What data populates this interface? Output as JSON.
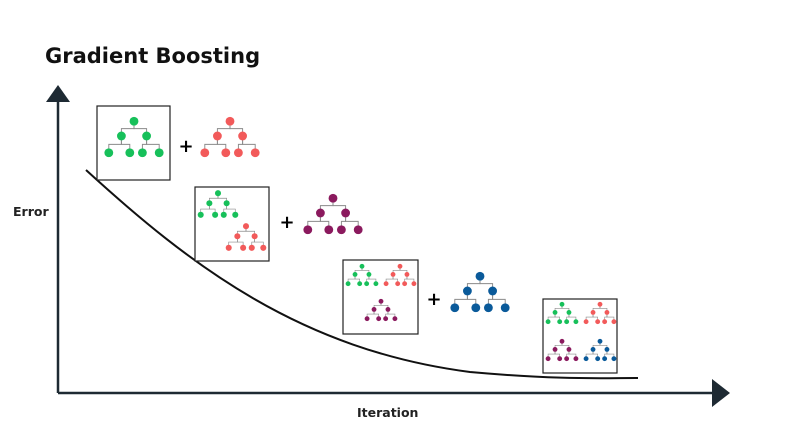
{
  "title": "Gradient Boosting",
  "axes": {
    "y_label": "Error",
    "x_label": "Iteration"
  },
  "operator_symbol": "+",
  "colors": {
    "axis": "#1e2a33",
    "curve": "#111111",
    "tree_1": "#17c05a",
    "tree_2": "#f25a5a",
    "tree_3": "#8b1a5e",
    "tree_4": "#0a5a9a",
    "edge": "#8a8a8a"
  },
  "stages": [
    {
      "ensemble": [
        "tree_1"
      ],
      "added": "tree_2"
    },
    {
      "ensemble": [
        "tree_1",
        "tree_2"
      ],
      "added": "tree_3"
    },
    {
      "ensemble": [
        "tree_1",
        "tree_2",
        "tree_3"
      ],
      "added": "tree_4"
    },
    {
      "ensemble": [
        "tree_1",
        "tree_2",
        "tree_3",
        "tree_4"
      ],
      "added": null
    }
  ]
}
